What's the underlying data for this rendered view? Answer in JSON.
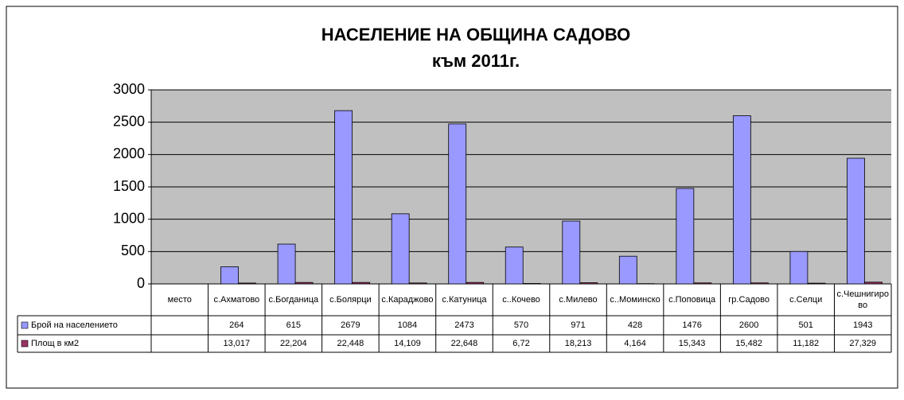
{
  "chart_data": {
    "type": "bar",
    "title": "НАСЕЛЕНИЕ НА ОБЩИНА САДОВО",
    "subtitle": "към 2011г.",
    "categories": [
      "место",
      "с.Ахматово",
      "с.Богданица",
      "с.Болярци",
      "с.Караджово",
      "с.Катуница",
      "с..Кочево",
      "с.Милево",
      "с..Моминско",
      "с.Поповица",
      "гр.Садово",
      "с.Селци",
      "с.Чешнигирово"
    ],
    "series": [
      {
        "name": "Брой на населението",
        "color": "#9999ff",
        "values": [
          null,
          264,
          615,
          2679,
          1084,
          2473,
          570,
          971,
          428,
          1476,
          2600,
          501,
          1943
        ]
      },
      {
        "name": "Площ в км2",
        "color": "#993366",
        "values": [
          null,
          13.017,
          22.204,
          22.448,
          14.109,
          22.648,
          6.72,
          18.213,
          4.164,
          15.343,
          15.482,
          11.182,
          27.329
        ],
        "value_labels": [
          null,
          "13,017",
          "22,204",
          "22,448",
          "14,109",
          "22,648",
          "6,72",
          "18,213",
          "4,164",
          "15,343",
          "15,482",
          "11,182",
          "27,329"
        ]
      }
    ],
    "ylim": [
      0,
      3000
    ],
    "yticks": [
      0,
      500,
      1000,
      1500,
      2000,
      2500,
      3000
    ],
    "grid": true
  }
}
